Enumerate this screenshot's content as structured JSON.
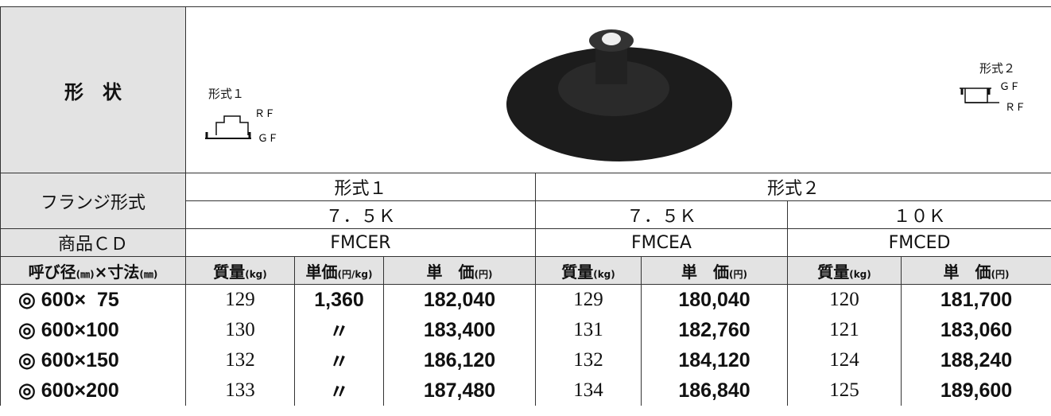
{
  "shape_row": {
    "label": "形　状",
    "type1": {
      "name": "形式１",
      "upper": "ＲＦ",
      "lower": "ＧＦ"
    },
    "type2": {
      "name": "形式２",
      "upper": "ＧＦ",
      "lower": "ＲＦ"
    }
  },
  "flange_row": {
    "label": "フランジ形式",
    "groups": [
      "形式１",
      "形式２"
    ],
    "ratings": [
      "７．５Ｋ",
      "７．５Ｋ",
      "１０Ｋ"
    ]
  },
  "code_row": {
    "label": "商品ＣＤ",
    "codes": [
      "FMCER",
      "FMCEA",
      "FMCED"
    ]
  },
  "column_headers": [
    [
      "呼び径",
      "(㎜)",
      "×寸法",
      "(㎜)"
    ],
    [
      "質量",
      "(kg)"
    ],
    [
      "単価",
      "(円/kg)"
    ],
    [
      "単　価",
      "(円)"
    ],
    [
      "質量",
      "(kg)"
    ],
    [
      "単　価",
      "(円)"
    ],
    [
      "質量",
      "(kg)"
    ],
    [
      "単　価",
      "(円)"
    ]
  ],
  "rows": [
    [
      "◎ 600×  75",
      "129",
      "1,360",
      "182,040",
      "129",
      "180,040",
      "120",
      "181,700"
    ],
    [
      "◎ 600×100",
      "130",
      "〃",
      "183,400",
      "131",
      "182,760",
      "121",
      "183,060"
    ],
    [
      "◎ 600×150",
      "132",
      "〃",
      "186,120",
      "132",
      "184,120",
      "124",
      "188,240"
    ],
    [
      "◎ 600×200",
      "133",
      "〃",
      "187,480",
      "134",
      "186,840",
      "125",
      "189,600"
    ]
  ]
}
